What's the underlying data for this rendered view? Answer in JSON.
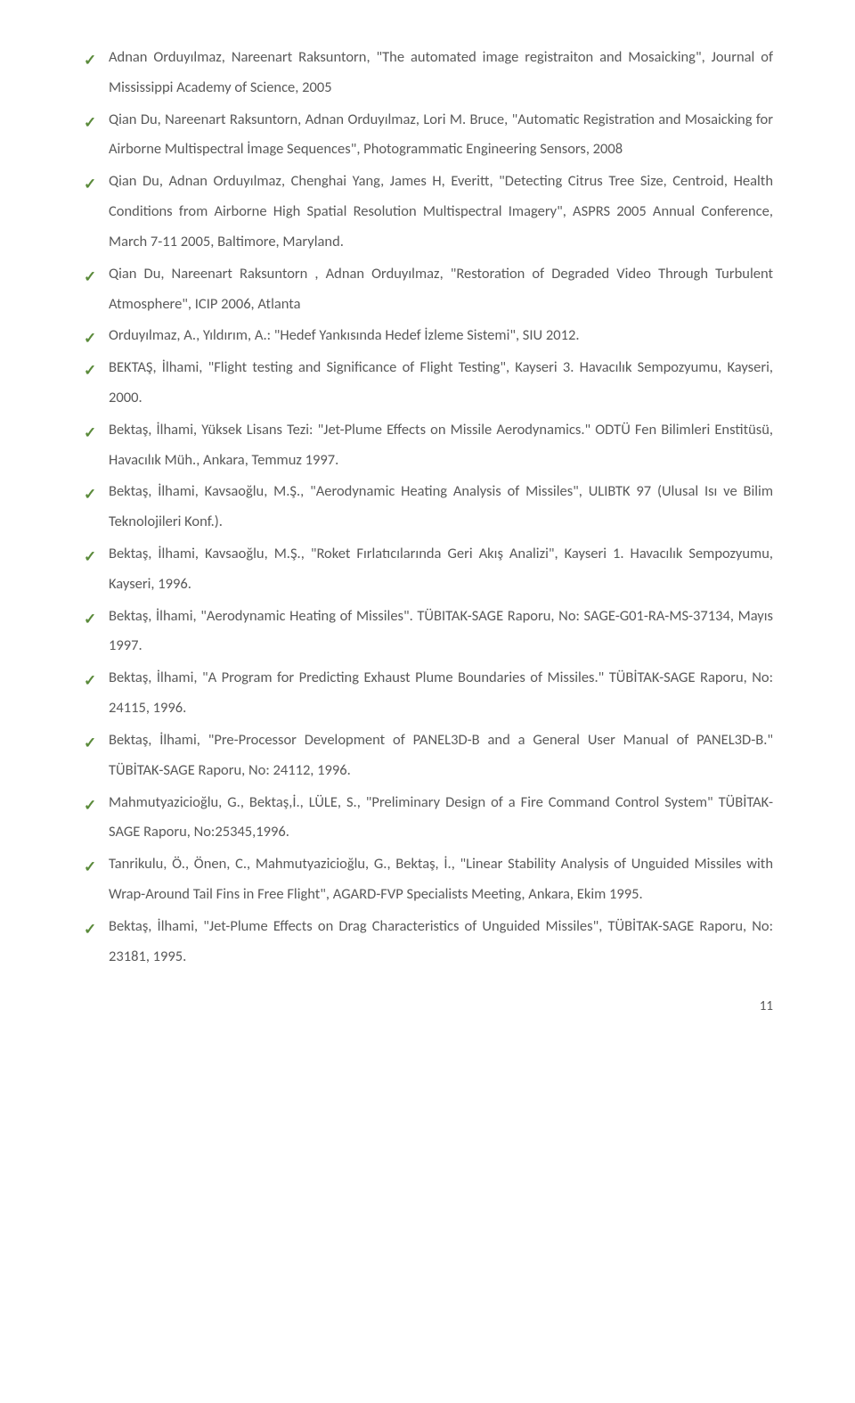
{
  "check_glyph": "✓",
  "page_number": "11",
  "references": [
    "Adnan Orduyılmaz, Nareenart Raksuntorn, \"The automated image registraiton and Mosaicking\", Journal of Mississippi Academy of Science, 2005",
    "Qian Du, Nareenart Raksuntorn, Adnan Orduyılmaz, Lori M. Bruce, \"Automatic Registration and Mosaicking for Airborne Multispectral İmage Sequences\", Photogrammatic Engineering Sensors, 2008",
    "Qian Du, Adnan Orduyılmaz, Chenghai Yang, James H, Everitt, \"Detecting Citrus Tree Size, Centroid, Health Conditions from Airborne High Spatial Resolution Multispectral Imagery\", ASPRS 2005 Annual Conference, March 7-11 2005, Baltimore, Maryland.",
    "Qian Du, Nareenart Raksuntorn , Adnan Orduyılmaz, \"Restoration of Degraded Video Through Turbulent Atmosphere\", ICIP 2006, Atlanta",
    "Orduyılmaz, A., Yıldırım, A.: \"Hedef Yankısında Hedef İzleme Sistemi\", SIU 2012.",
    "BEKTAŞ, İlhami, \"Flight testing and Significance of Flight Testing\", Kayseri 3. Havacılık Sempozyumu, Kayseri, 2000.",
    "Bektaş, İlhami, Yüksek Lisans Tezi: \"Jet-Plume Effects on Missile Aerodynamics.\" ODTÜ Fen Bilimleri Enstitüsü, Havacılık Müh., Ankara, Temmuz 1997.",
    "Bektaş, İlhami, Kavsaoğlu, M.Ş., \"Aerodynamic Heating Analysis of Missiles\", ULIBTK 97 (Ulusal Isı ve Bilim Teknolojileri Konf.).",
    "Bektaş, İlhami, Kavsaoğlu, M.Ş., \"Roket Fırlatıcılarında Geri Akış Analizi\", Kayseri 1. Havacılık Sempozyumu, Kayseri, 1996.",
    "Bektaş, İlhami, \"Aerodynamic Heating of Missiles\". TÜBITAK-SAGE Raporu, No: SAGE-G01-RA-MS-37134, Mayıs 1997.",
    "Bektaş, İlhami, \"A Program for Predicting Exhaust Plume Boundaries of Missiles.\" TÜBİTAK-SAGE Raporu, No: 24115, 1996.",
    "Bektaş, İlhami, \"Pre-Processor Development of PANEL3D-B and a General User Manual of PANEL3D-B.\"  TÜBİTAK-SAGE Raporu, No: 24112, 1996.",
    "Mahmutyazicioğlu, G., Bektaş,İ., LÜLE, S., \"Preliminary Design of a Fire Command Control System\" TÜBİTAK-SAGE Raporu, No:25345,1996.",
    "Tanrikulu, Ö., Önen, C., Mahmutyazicioğlu, G., Bektaş, İ., \"Linear Stability Analysis of Unguided Missiles with Wrap-Around Tail Fins in Free Flight\", AGARD-FVP Specialists Meeting, Ankara, Ekim 1995.",
    "Bektaş, İlhami, \"Jet-Plume Effects on Drag Characteristics of Unguided Missiles\", TÜBİTAK-SAGE Raporu, No: 23181, 1995."
  ]
}
